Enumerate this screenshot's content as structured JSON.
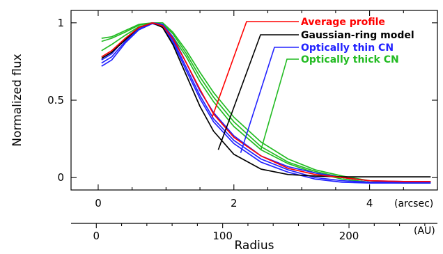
{
  "chart_data": {
    "type": "line",
    "ylabel": "Normalized flux",
    "xlabel": "Radius",
    "x_axis_top": {
      "unit": "(arcsec)",
      "range": [
        -0.4,
        5.0
      ],
      "ticks": [
        0,
        2,
        4
      ],
      "tick_labels": [
        "0",
        "2",
        "4"
      ]
    },
    "x_axis_bottom": {
      "unit": "(AU)",
      "range": [
        -20,
        270
      ],
      "ticks": [
        0,
        100,
        200
      ],
      "tick_labels": [
        "0",
        "100",
        "200"
      ]
    },
    "y_axis": {
      "range": [
        -0.08,
        1.08
      ],
      "ticks": [
        0,
        0.5,
        1
      ],
      "tick_labels": [
        "0",
        "0.5",
        "1"
      ]
    },
    "grid": false,
    "legend_position": "top-right",
    "series": [
      {
        "name": "Average profile",
        "color": "#ff0000",
        "x": [
          0.05,
          0.2,
          0.4,
          0.6,
          0.8,
          0.95,
          1.1,
          1.3,
          1.5,
          1.7,
          2.0,
          2.4,
          2.8,
          3.2,
          3.6,
          4.0,
          4.5,
          4.9
        ],
        "y": [
          0.78,
          0.82,
          0.9,
          0.97,
          1.0,
          0.98,
          0.9,
          0.74,
          0.57,
          0.41,
          0.26,
          0.14,
          0.06,
          0.02,
          0.0,
          -0.02,
          -0.025,
          -0.025
        ]
      },
      {
        "name": "Gaussian-ring model",
        "color": "#000000",
        "x": [
          0.05,
          0.2,
          0.4,
          0.6,
          0.8,
          0.95,
          1.1,
          1.3,
          1.5,
          1.7,
          2.0,
          2.4,
          2.8,
          3.2,
          3.6,
          4.0,
          4.5,
          4.9
        ],
        "y": [
          0.77,
          0.81,
          0.89,
          0.97,
          1.0,
          0.97,
          0.86,
          0.66,
          0.46,
          0.3,
          0.15,
          0.055,
          0.02,
          0.01,
          0.005,
          0.005,
          0.005,
          0.005
        ]
      },
      {
        "name": "Optically thin CN",
        "color": "#2222ff",
        "x": [
          0.05,
          0.2,
          0.4,
          0.6,
          0.8,
          0.95,
          1.1,
          1.3,
          1.5,
          1.7,
          2.0,
          2.4,
          2.8,
          3.2,
          3.6,
          4.0,
          4.5,
          4.9
        ],
        "y": [
          0.74,
          0.78,
          0.88,
          0.96,
          1.0,
          0.98,
          0.89,
          0.71,
          0.53,
          0.38,
          0.24,
          0.12,
          0.05,
          0.0,
          -0.02,
          -0.03,
          -0.03,
          -0.03
        ],
        "y_band": [
          [
            0.76,
            0.8,
            0.9,
            0.97,
            1.0,
            0.99,
            0.91,
            0.74,
            0.56,
            0.42,
            0.27,
            0.14,
            0.07,
            0.03,
            0.0,
            -0.02,
            -0.025,
            -0.025
          ],
          [
            0.72,
            0.76,
            0.87,
            0.955,
            0.995,
            0.975,
            0.875,
            0.69,
            0.51,
            0.36,
            0.22,
            0.1,
            0.035,
            -0.01,
            -0.03,
            -0.035,
            -0.035,
            -0.035
          ]
        ]
      },
      {
        "name": "Optically thick CN",
        "color": "#22bb22",
        "x": [
          0.05,
          0.2,
          0.4,
          0.6,
          0.8,
          0.95,
          1.1,
          1.3,
          1.5,
          1.7,
          2.0,
          2.4,
          2.8,
          3.2,
          3.6,
          4.0,
          4.5,
          4.9
        ],
        "y": [
          0.88,
          0.9,
          0.94,
          0.985,
          1.0,
          0.99,
          0.93,
          0.8,
          0.65,
          0.52,
          0.36,
          0.2,
          0.1,
          0.04,
          0.0,
          -0.02,
          -0.03,
          -0.03
        ],
        "y_band": [
          [
            0.9,
            0.91,
            0.95,
            0.99,
            1.0,
            1.0,
            0.94,
            0.82,
            0.68,
            0.55,
            0.39,
            0.23,
            0.12,
            0.05,
            0.01,
            -0.02,
            -0.03,
            -0.03
          ],
          [
            0.82,
            0.86,
            0.92,
            0.975,
            0.995,
            0.985,
            0.91,
            0.78,
            0.62,
            0.49,
            0.33,
            0.18,
            0.09,
            0.03,
            -0.01,
            -0.03,
            -0.035,
            -0.035
          ]
        ]
      }
    ]
  }
}
